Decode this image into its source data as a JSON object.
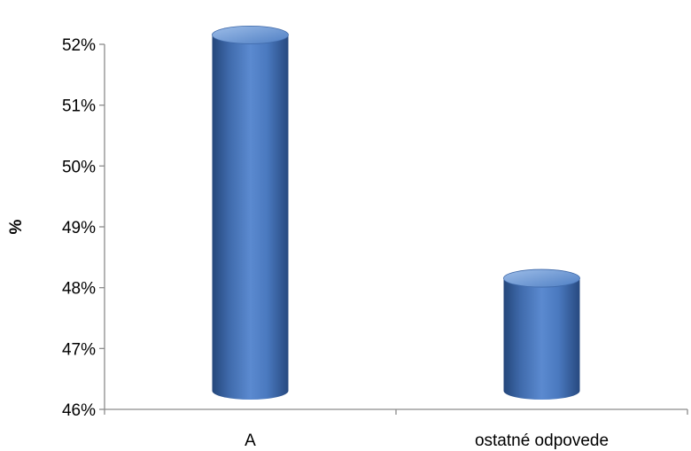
{
  "chart_data": {
    "type": "bar",
    "bar_style": "3d-cylinder",
    "categories": [
      "A",
      "ostatné odpovede"
    ],
    "values": [
      52.3,
      48.3
    ],
    "value_unit": "%",
    "ylabel": "%",
    "xlabel": "",
    "ylim": [
      46,
      52
    ],
    "yticks": [
      46,
      47,
      48,
      49,
      50,
      51,
      52
    ],
    "ytick_labels": [
      "46%",
      "47%",
      "48%",
      "49%",
      "50%",
      "51%",
      "52%"
    ],
    "grid": false,
    "legend": "none",
    "colors": {
      "bar_main": "#4f81bd",
      "bar_light": "#8fb2e3",
      "bar_dark": "#24467a",
      "axis": "#8c8c8c"
    }
  }
}
